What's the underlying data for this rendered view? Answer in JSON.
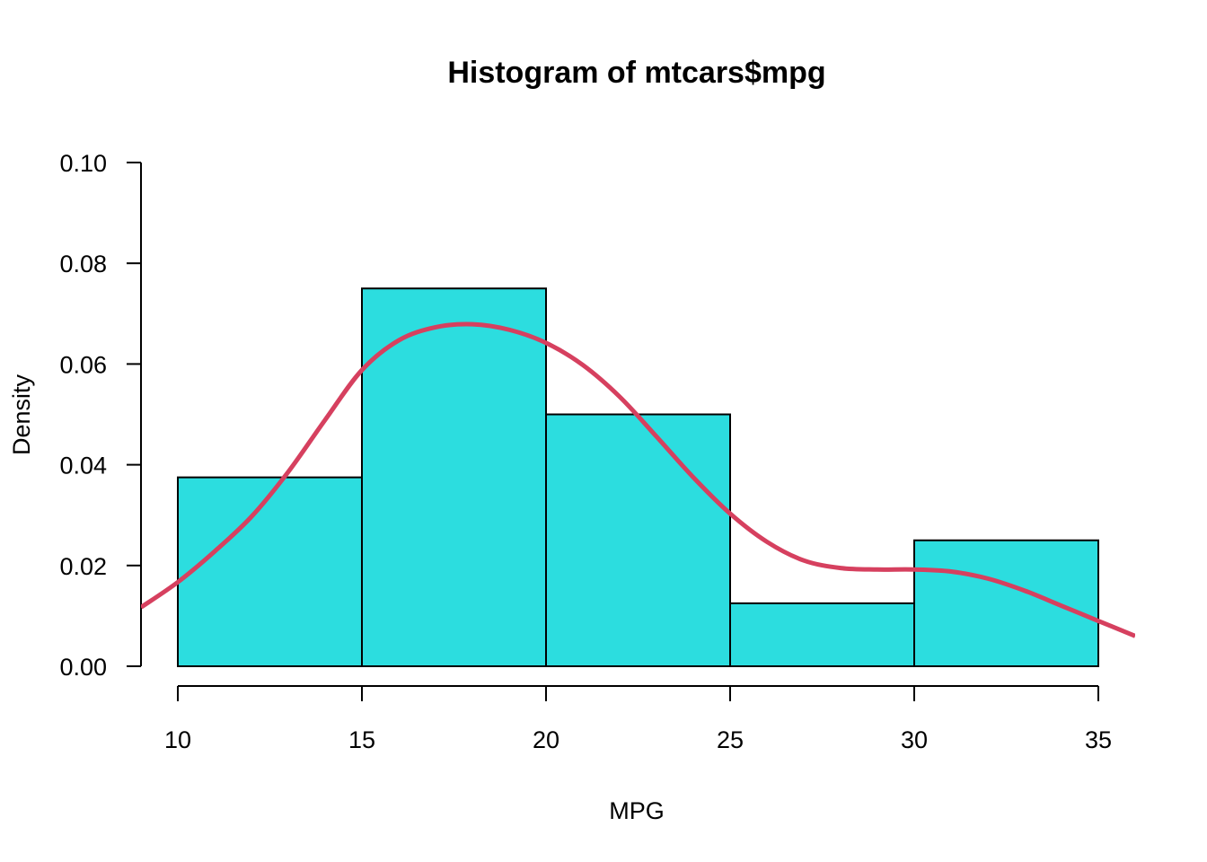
{
  "chart_data": {
    "type": "histogram",
    "title": "Histogram of mtcars$mpg",
    "xlabel": "MPG",
    "ylabel": "Density",
    "bins": [
      {
        "from": 10,
        "to": 15,
        "density": 0.0375
      },
      {
        "from": 15,
        "to": 20,
        "density": 0.075
      },
      {
        "from": 20,
        "to": 25,
        "density": 0.05
      },
      {
        "from": 25,
        "to": 30,
        "density": 0.0125
      },
      {
        "from": 30,
        "to": 35,
        "density": 0.025
      }
    ],
    "x_ticks": [
      "10",
      "15",
      "20",
      "25",
      "30",
      "35"
    ],
    "y_ticks": [
      "0.00",
      "0.02",
      "0.04",
      "0.06",
      "0.08",
      "0.10"
    ],
    "xlim": [
      9,
      36
    ],
    "ylim": [
      0,
      0.1
    ],
    "density_curve": {
      "x": [
        9,
        10,
        11,
        12,
        13,
        14,
        15,
        16,
        17,
        18,
        19,
        20,
        21,
        22,
        23,
        24,
        25,
        26,
        27,
        28,
        29,
        30,
        31,
        32,
        33,
        34,
        35,
        36
      ],
      "y": [
        0.0117,
        0.0167,
        0.0228,
        0.0297,
        0.0386,
        0.0489,
        0.0588,
        0.0647,
        0.0673,
        0.0679,
        0.0668,
        0.0642,
        0.0598,
        0.0535,
        0.0456,
        0.0375,
        0.0303,
        0.0247,
        0.021,
        0.0195,
        0.0192,
        0.0192,
        0.0188,
        0.0174,
        0.015,
        0.012,
        0.009,
        0.006
      ]
    },
    "grid": false,
    "colors": {
      "bar_fill": "#2CDDDF",
      "bar_stroke": "#000000",
      "density_line": "#D6405F"
    }
  }
}
